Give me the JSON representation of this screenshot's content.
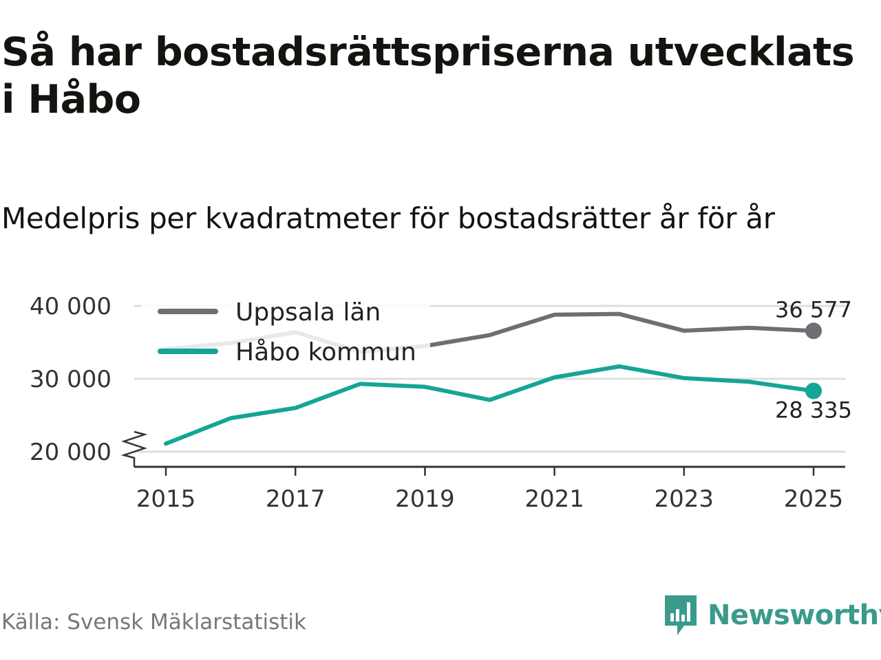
{
  "title": "Så har bostadsrättspriserna utvecklats i Håbo",
  "subtitle": "Medelpris per kvadratmeter för bostadsrätter år för år",
  "source": "Källa: Svensk Mäklarstatistik",
  "brand": {
    "name": "Newsworthy",
    "color": "#3a9a8c",
    "icon": "bar-chart-speech-bubble-icon"
  },
  "colors": {
    "grid": "#dddddd",
    "axis": "#333333",
    "background": "#ffffff"
  },
  "chart_data": {
    "type": "line",
    "title": "Medelpris per kvadratmeter för bostadsrätter år för år",
    "xlabel": "",
    "ylabel": "",
    "x": [
      2015,
      2016,
      2017,
      2018,
      2019,
      2020,
      2021,
      2022,
      2023,
      2024,
      2025
    ],
    "xlim": [
      2014.5,
      2025.5
    ],
    "ylim": [
      20000,
      40000
    ],
    "y_axis_break": true,
    "x_ticks": [
      "2015",
      "2017",
      "2019",
      "2021",
      "2023",
      "2025"
    ],
    "y_ticks": [
      {
        "value": 20000,
        "label": "20 000"
      },
      {
        "value": 30000,
        "label": "30 000"
      },
      {
        "value": 40000,
        "label": "40 000"
      }
    ],
    "grid": true,
    "legend_position": "top-left",
    "series": [
      {
        "name": "Uppsala län",
        "color": "#6e6e73",
        "values": [
          34100,
          34900,
          36400,
          33700,
          34500,
          36000,
          38800,
          38900,
          36600,
          37000,
          36577
        ],
        "end_label": "36 577",
        "end_label_position": "above"
      },
      {
        "name": "Håbo kommun",
        "color": "#15a594",
        "values": [
          21100,
          24600,
          26000,
          29300,
          28900,
          27100,
          30200,
          31700,
          30100,
          29600,
          28335
        ],
        "end_label": "28 335",
        "end_label_position": "below"
      }
    ]
  }
}
